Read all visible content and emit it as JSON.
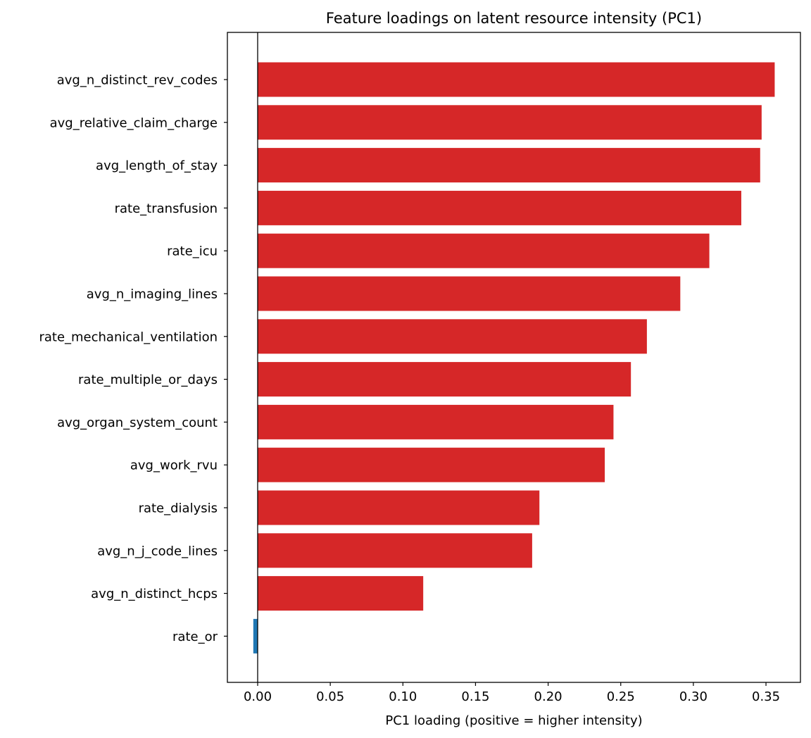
{
  "chart_data": {
    "type": "bar",
    "orientation": "horizontal",
    "title": "Feature loadings on latent resource intensity (PC1)",
    "xlabel": "PC1 loading (positive = higher intensity)",
    "ylabel": "",
    "xlim": [
      -0.021,
      0.374
    ],
    "xticks": [
      0.0,
      0.05,
      0.1,
      0.15,
      0.2,
      0.25,
      0.3,
      0.35
    ],
    "xtick_labels": [
      "0.00",
      "0.05",
      "0.10",
      "0.15",
      "0.20",
      "0.25",
      "0.30",
      "0.35"
    ],
    "grid": false,
    "legend": null,
    "zero_line": true,
    "colors": {
      "positive": "#d62728",
      "negative": "#1f77b4",
      "axis": "#000000"
    },
    "categories": [
      "avg_n_distinct_rev_codes",
      "avg_relative_claim_charge",
      "avg_length_of_stay",
      "rate_transfusion",
      "rate_icu",
      "avg_n_imaging_lines",
      "rate_mechanical_ventilation",
      "rate_multiple_or_days",
      "avg_organ_system_count",
      "avg_work_rvu",
      "rate_dialysis",
      "avg_n_j_code_lines",
      "avg_n_distinct_hcps",
      "rate_or"
    ],
    "values": [
      0.356,
      0.347,
      0.346,
      0.333,
      0.311,
      0.291,
      0.268,
      0.257,
      0.245,
      0.239,
      0.194,
      0.189,
      0.114,
      -0.003
    ]
  }
}
